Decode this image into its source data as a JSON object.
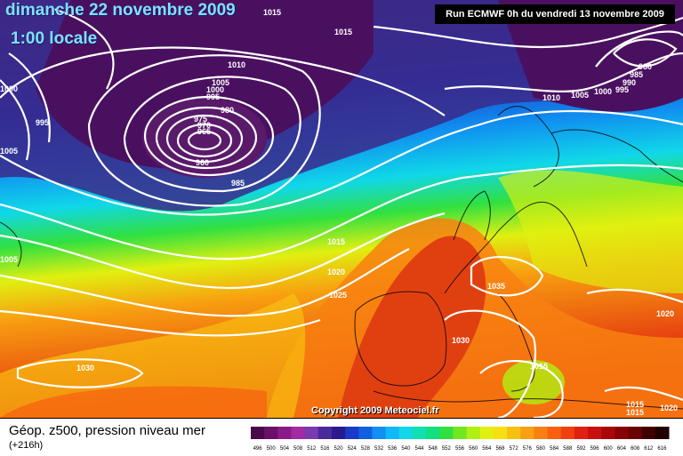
{
  "header": {
    "date": "dimanche 22 novembre 2009",
    "time": "1:00 locale",
    "run": "Run ECMWF 0h du vendredi 13 novembre 2009"
  },
  "map": {
    "copyright": "Copyright 2009 Meteociel.fr",
    "low_center_label": "960",
    "pressure_labels": [
      "1015",
      "1015",
      "1010",
      "1005",
      "1000",
      "995",
      "980",
      "975",
      "970",
      "965",
      "960",
      "985",
      "995",
      "1005",
      "1000",
      "980",
      "985",
      "990",
      "995",
      "1000",
      "1005",
      "1010",
      "1015",
      "1020",
      "1025",
      "1035",
      "1030",
      "1015",
      "1020",
      "1030",
      "1015",
      "1015",
      "1020",
      "1005"
    ]
  },
  "footer": {
    "title": "Géop. z500, pression niveau mer",
    "subtitle": "(+216h)"
  },
  "legend": {
    "labels": [
      "496",
      "500",
      "504",
      "508",
      "512",
      "516",
      "520",
      "524",
      "528",
      "532",
      "536",
      "540",
      "544",
      "548",
      "552",
      "556",
      "560",
      "564",
      "568",
      "572",
      "576",
      "580",
      "584",
      "588",
      "592",
      "596",
      "600",
      "604",
      "608",
      "612",
      "616"
    ],
    "colors": [
      "#4a0a4a",
      "#6a106a",
      "#8a1a8a",
      "#a22aa2",
      "#7a3ab0",
      "#4a2a9a",
      "#2a1a90",
      "#1a3ac8",
      "#1060e0",
      "#1090f0",
      "#10b8f8",
      "#10d8e8",
      "#10e0b0",
      "#10e080",
      "#30e040",
      "#70e820",
      "#b0f010",
      "#e0f010",
      "#f8e010",
      "#f8c010",
      "#f8a010",
      "#f88010",
      "#f86010",
      "#f04010",
      "#e02010",
      "#c81010",
      "#a80808",
      "#880404",
      "#6a0202",
      "#400000",
      "#200000"
    ]
  },
  "colors": {
    "title": "#7fe0ff",
    "run_box_bg": "#000000",
    "isobar": "#ffffff"
  }
}
